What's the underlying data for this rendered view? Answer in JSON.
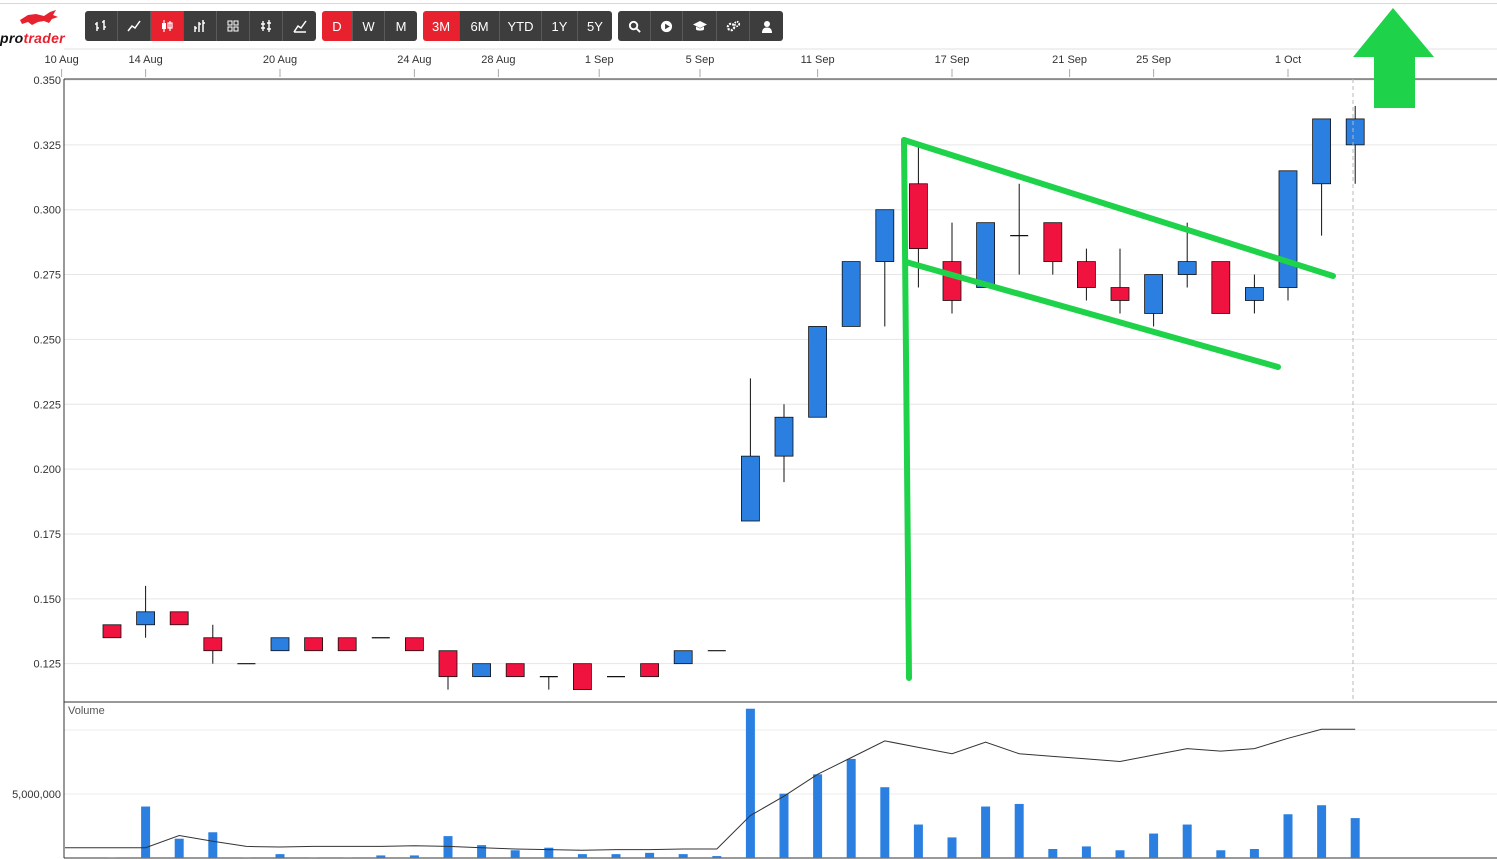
{
  "app": {
    "brand": "protrader",
    "brand_parts": [
      "pro",
      "trader"
    ],
    "logo_icon": "bull-logo-icon"
  },
  "toolbar": {
    "chart_types": [
      {
        "icon": "ohlc-bars-icon",
        "active": false
      },
      {
        "icon": "line-chart-icon",
        "active": false
      },
      {
        "icon": "candlestick-icon",
        "active": true
      },
      {
        "icon": "hlc-bars-icon",
        "active": false
      },
      {
        "icon": "hollow-candles-icon",
        "active": false
      },
      {
        "icon": "heikin-ashi-icon",
        "active": false
      },
      {
        "icon": "mountain-chart-icon",
        "active": false
      }
    ],
    "intervals": [
      {
        "label": "D",
        "active": true
      },
      {
        "label": "W",
        "active": false
      },
      {
        "label": "M",
        "active": false
      }
    ],
    "ranges": [
      {
        "label": "3M",
        "active": true
      },
      {
        "label": "6M",
        "active": false
      },
      {
        "label": "YTD",
        "active": false
      },
      {
        "label": "1Y",
        "active": false
      },
      {
        "label": "5Y",
        "active": false
      }
    ],
    "tools": [
      {
        "icon": "search-icon"
      },
      {
        "icon": "play-icon"
      },
      {
        "icon": "graduation-cap-icon"
      },
      {
        "icon": "gears-icon"
      },
      {
        "icon": "user-icon"
      }
    ]
  },
  "colors": {
    "up": "#2a7fe0",
    "down": "#f0123f",
    "volume": "#2a7fe0",
    "annotation": "#1ed24a",
    "accent": "#e8212f",
    "toolbar_bg": "#3d3d3d"
  },
  "chart_data": {
    "type": "candlestick",
    "price_axis": {
      "ticks": [
        "0.350",
        "0.325",
        "0.300",
        "0.275",
        "0.250",
        "0.225",
        "0.200",
        "0.175",
        "0.150",
        "0.125"
      ],
      "ylim": [
        0.111,
        0.35
      ]
    },
    "date_axis": {
      "ticks": [
        {
          "label": "10 Aug",
          "index": -1.5
        },
        {
          "label": "14 Aug",
          "index": 1
        },
        {
          "label": "20 Aug",
          "index": 5
        },
        {
          "label": "24 Aug",
          "index": 9
        },
        {
          "label": "28 Aug",
          "index": 11.5
        },
        {
          "label": "1 Sep",
          "index": 14.5
        },
        {
          "label": "5 Sep",
          "index": 17.5
        },
        {
          "label": "11 Sep",
          "index": 21
        },
        {
          "label": "17 Sep",
          "index": 25
        },
        {
          "label": "21 Sep",
          "index": 28.5
        },
        {
          "label": "25 Sep",
          "index": 31
        },
        {
          "label": "1 Oct",
          "index": 35
        }
      ]
    },
    "candles": [
      {
        "o": 0.135,
        "h": 0.14,
        "l": 0.135,
        "c": 0.14,
        "up": false
      },
      {
        "o": 0.14,
        "h": 0.155,
        "l": 0.135,
        "c": 0.145,
        "up": true
      },
      {
        "o": 0.14,
        "h": 0.145,
        "l": 0.14,
        "c": 0.145,
        "up": false
      },
      {
        "o": 0.13,
        "h": 0.14,
        "l": 0.125,
        "c": 0.135,
        "up": false
      },
      {
        "o": 0.125,
        "h": 0.125,
        "l": 0.125,
        "c": 0.125,
        "up": false
      },
      {
        "o": 0.13,
        "h": 0.135,
        "l": 0.13,
        "c": 0.135,
        "up": true
      },
      {
        "o": 0.13,
        "h": 0.135,
        "l": 0.13,
        "c": 0.135,
        "up": false
      },
      {
        "o": 0.13,
        "h": 0.135,
        "l": 0.13,
        "c": 0.135,
        "up": false
      },
      {
        "o": 0.135,
        "h": 0.135,
        "l": 0.135,
        "c": 0.135,
        "up": false
      },
      {
        "o": 0.13,
        "h": 0.135,
        "l": 0.13,
        "c": 0.135,
        "up": false
      },
      {
        "o": 0.12,
        "h": 0.13,
        "l": 0.115,
        "c": 0.13,
        "up": false
      },
      {
        "o": 0.12,
        "h": 0.125,
        "l": 0.12,
        "c": 0.125,
        "up": true
      },
      {
        "o": 0.12,
        "h": 0.125,
        "l": 0.12,
        "c": 0.125,
        "up": false
      },
      {
        "o": 0.12,
        "h": 0.12,
        "l": 0.115,
        "c": 0.12,
        "up": false
      },
      {
        "o": 0.115,
        "h": 0.125,
        "l": 0.115,
        "c": 0.125,
        "up": false
      },
      {
        "o": 0.12,
        "h": 0.12,
        "l": 0.12,
        "c": 0.12,
        "up": false
      },
      {
        "o": 0.12,
        "h": 0.125,
        "l": 0.12,
        "c": 0.125,
        "up": false
      },
      {
        "o": 0.125,
        "h": 0.13,
        "l": 0.125,
        "c": 0.13,
        "up": true
      },
      {
        "o": 0.13,
        "h": 0.13,
        "l": 0.13,
        "c": 0.13,
        "up": false
      },
      {
        "o": 0.18,
        "h": 0.235,
        "l": 0.18,
        "c": 0.205,
        "up": true
      },
      {
        "o": 0.205,
        "h": 0.225,
        "l": 0.195,
        "c": 0.22,
        "up": true
      },
      {
        "o": 0.22,
        "h": 0.255,
        "l": 0.22,
        "c": 0.255,
        "up": true
      },
      {
        "o": 0.255,
        "h": 0.28,
        "l": 0.255,
        "c": 0.28,
        "up": true
      },
      {
        "o": 0.28,
        "h": 0.3,
        "l": 0.255,
        "c": 0.3,
        "up": true
      },
      {
        "o": 0.31,
        "h": 0.325,
        "l": 0.27,
        "c": 0.285,
        "up": false
      },
      {
        "o": 0.28,
        "h": 0.295,
        "l": 0.26,
        "c": 0.265,
        "up": false
      },
      {
        "o": 0.27,
        "h": 0.295,
        "l": 0.27,
        "c": 0.295,
        "up": true
      },
      {
        "o": 0.29,
        "h": 0.31,
        "l": 0.275,
        "c": 0.29,
        "up": false
      },
      {
        "o": 0.295,
        "h": 0.295,
        "l": 0.275,
        "c": 0.28,
        "up": false
      },
      {
        "o": 0.28,
        "h": 0.285,
        "l": 0.265,
        "c": 0.27,
        "up": false
      },
      {
        "o": 0.27,
        "h": 0.285,
        "l": 0.26,
        "c": 0.265,
        "up": false
      },
      {
        "o": 0.26,
        "h": 0.275,
        "l": 0.255,
        "c": 0.275,
        "up": true
      },
      {
        "o": 0.275,
        "h": 0.295,
        "l": 0.27,
        "c": 0.28,
        "up": true
      },
      {
        "o": 0.28,
        "h": 0.28,
        "l": 0.26,
        "c": 0.26,
        "up": false
      },
      {
        "o": 0.265,
        "h": 0.275,
        "l": 0.26,
        "c": 0.27,
        "up": true
      },
      {
        "o": 0.27,
        "h": 0.315,
        "l": 0.265,
        "c": 0.315,
        "up": true
      },
      {
        "o": 0.31,
        "h": 0.335,
        "l": 0.29,
        "c": 0.335,
        "up": true
      },
      {
        "o": 0.325,
        "h": 0.34,
        "l": 0.31,
        "c": 0.335,
        "up": true
      }
    ],
    "volume": {
      "label": "Volume",
      "tick_label": "5,000,000",
      "tick_value": 5000000,
      "max": 11500000,
      "bars": [
        50000,
        4000000,
        1500000,
        2000000,
        50000,
        300000,
        50000,
        50000,
        200000,
        200000,
        1700000,
        1000000,
        600000,
        800000,
        300000,
        300000,
        400000,
        300000,
        150000,
        11600000,
        5000000,
        6500000,
        7700000,
        5500000,
        2600000,
        1600000,
        4000000,
        4200000,
        700000,
        900000,
        600000,
        1900000,
        2600000,
        600000,
        700000,
        3400000,
        4100000,
        3100000
      ],
      "average_line": [
        800000,
        800000,
        1750000,
        1300000,
        900000,
        850000,
        900000,
        900000,
        900000,
        950000,
        900000,
        800000,
        700000,
        650000,
        600000,
        650000,
        650000,
        700000,
        700000,
        3300000,
        4800000,
        6500000,
        7800000,
        9100000,
        8600000,
        8100000,
        9000000,
        8100000,
        7900000,
        7700000,
        7500000,
        8000000,
        8500000,
        8300000,
        8500000,
        9300000,
        10000000,
        10000000
      ]
    }
  }
}
